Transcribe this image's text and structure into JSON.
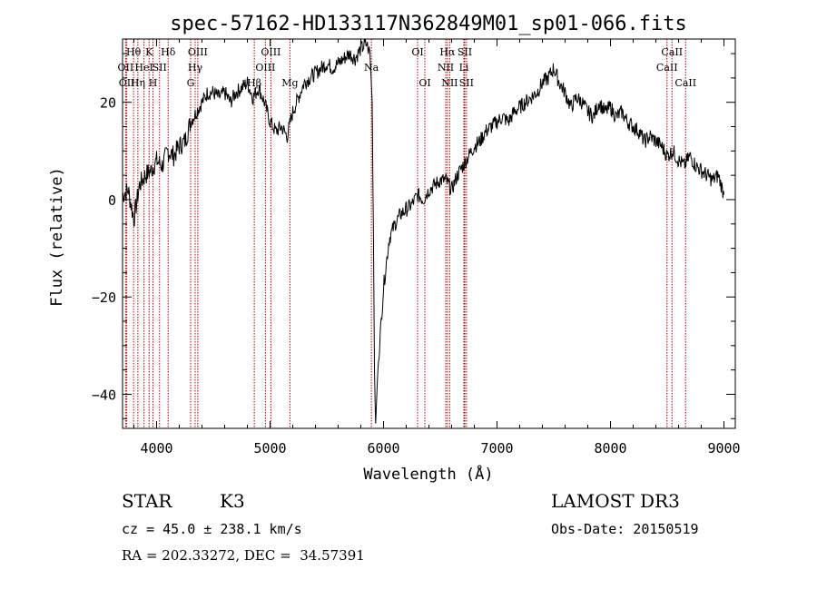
{
  "chart_data": {
    "type": "line",
    "title": "spec-57162-HD133117N362849M01_sp01-066.fits",
    "xlabel": "Wavelength (Å)",
    "ylabel": "Flux (relative)",
    "xlim": [
      3700,
      9100
    ],
    "ylim": [
      -47,
      33
    ],
    "xticks": [
      4000,
      5000,
      6000,
      7000,
      8000,
      9000
    ],
    "xtick_labels": [
      "4000",
      "5000",
      "6000",
      "7000",
      "8000",
      "9000"
    ],
    "yticks": [
      -40,
      -20,
      0,
      20
    ],
    "ytick_labels": [
      "−40",
      "−20",
      "0",
      "20"
    ],
    "grid": false,
    "legend": "none",
    "series": [
      {
        "color": "#000000",
        "x": [
          3700,
          3750,
          3800,
          3850,
          3900,
          3950,
          4000,
          4050,
          4100,
          4150,
          4200,
          4250,
          4300,
          4350,
          4400,
          4450,
          4500,
          4550,
          4600,
          4650,
          4700,
          4750,
          4800,
          4850,
          4900,
          4950,
          5000,
          5050,
          5100,
          5150,
          5200,
          5250,
          5300,
          5350,
          5400,
          5450,
          5500,
          5550,
          5600,
          5650,
          5700,
          5750,
          5800,
          5850,
          5880,
          5900,
          5910,
          5920,
          5930,
          5950,
          6000,
          6050,
          6100,
          6150,
          6200,
          6250,
          6300,
          6350,
          6400,
          6450,
          6500,
          6550,
          6600,
          6650,
          6700,
          6750,
          6800,
          6850,
          6900,
          6950,
          7000,
          7050,
          7100,
          7150,
          7200,
          7250,
          7300,
          7350,
          7400,
          7450,
          7500,
          7550,
          7600,
          7650,
          7700,
          7750,
          7800,
          7850,
          7900,
          7950,
          8000,
          8050,
          8100,
          8150,
          8200,
          8250,
          8300,
          8350,
          8400,
          8450,
          8500,
          8550,
          8600,
          8650,
          8700,
          8750,
          8800,
          8850,
          8900,
          8950,
          9000
        ],
        "y": [
          1,
          2,
          -4,
          3,
          5,
          6,
          8,
          7,
          10,
          9,
          11,
          12,
          16,
          18,
          20,
          22,
          22,
          21,
          22,
          20,
          22,
          23,
          24,
          21,
          23,
          20,
          16,
          14,
          15,
          13,
          18,
          21,
          24,
          25,
          26,
          27,
          28,
          27,
          28,
          29,
          30,
          29,
          31,
          32,
          30,
          20,
          -5,
          -35,
          -46,
          -35,
          -18,
          -8,
          -5,
          -3,
          -2,
          -1,
          1,
          0,
          2,
          3,
          4,
          4,
          2,
          5,
          7,
          9,
          11,
          12,
          14,
          15,
          16,
          17,
          16,
          18,
          19,
          20,
          21,
          22,
          24,
          25,
          27,
          24,
          22,
          19,
          21,
          20,
          18,
          17,
          20,
          18,
          19,
          17,
          18,
          16,
          15,
          14,
          12,
          13,
          12,
          11,
          9,
          10,
          8,
          7,
          9,
          7,
          6,
          5,
          4,
          5,
          1
        ]
      }
    ],
    "line_markers": [
      {
        "x": 3797,
        "label": "Hθ",
        "row": 0
      },
      {
        "x": 3727,
        "label": "OII",
        "row": 1
      },
      {
        "x": 3737,
        "label": "OII",
        "row": 2
      },
      {
        "x": 3835,
        "label": "Hη",
        "row": 2
      },
      {
        "x": 3889,
        "label": "HeI",
        "row": 1
      },
      {
        "x": 3934,
        "label": "K",
        "row": 0
      },
      {
        "x": 3968,
        "label": "H",
        "row": 2
      },
      {
        "x": 4026,
        "label": "SII",
        "row": 1
      },
      {
        "x": 4102,
        "label": "Hδ",
        "row": 0
      },
      {
        "x": 4300,
        "label": "G",
        "row": 2
      },
      {
        "x": 4340,
        "label": "Hγ",
        "row": 1
      },
      {
        "x": 4363,
        "label": "OIII",
        "row": 0
      },
      {
        "x": 4861,
        "label": "Hβ",
        "row": 2
      },
      {
        "x": 4959,
        "label": "OIII",
        "row": 1
      },
      {
        "x": 5007,
        "label": "OIII",
        "row": 0
      },
      {
        "x": 5175,
        "label": "Mg",
        "row": 2
      },
      {
        "x": 5893,
        "label": "Na",
        "row": 1
      },
      {
        "x": 6300,
        "label": "OI",
        "row": 0
      },
      {
        "x": 6364,
        "label": "OI",
        "row": 2
      },
      {
        "x": 6548,
        "label": "NII",
        "row": 1
      },
      {
        "x": 6563,
        "label": "Hα",
        "row": 0
      },
      {
        "x": 6583,
        "label": "NII",
        "row": 2
      },
      {
        "x": 6708,
        "label": "Li",
        "row": 1
      },
      {
        "x": 6716,
        "label": "SII",
        "row": 0
      },
      {
        "x": 6731,
        "label": "SII",
        "row": 2
      },
      {
        "x": 8498,
        "label": "CaII",
        "row": 1
      },
      {
        "x": 8542,
        "label": "CaII",
        "row": 0
      },
      {
        "x": 8662,
        "label": "CaII",
        "row": 2
      }
    ],
    "marker_color": "#b00000"
  },
  "info": {
    "object_class": "STAR",
    "subclass": "K3",
    "survey": "LAMOST DR3",
    "redshift": "cz = 45.0 ± 238.1 km/s",
    "obs_date": "Obs-Date: 20150519",
    "coords": "RA = 202.33272, DEC =  34.57391"
  }
}
